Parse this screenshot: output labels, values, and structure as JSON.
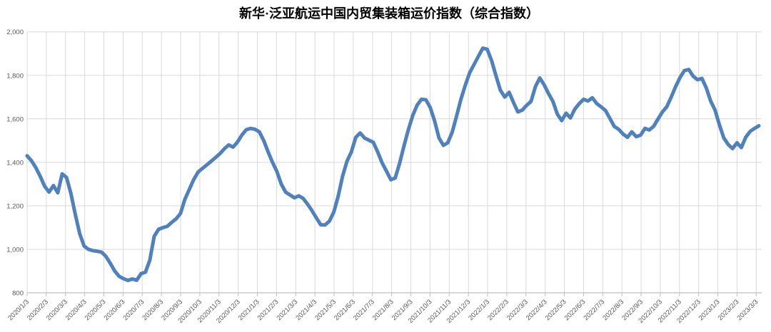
{
  "title": "新华·泛亚航运中国内贸集装箱运价指数（综合指数）",
  "colors": {
    "line": "#4F81BD",
    "gridline": "#D9D9D9",
    "axis_line": "#BFBFBF",
    "tick_label": "#595959",
    "title": "#000000",
    "background": "#FFFFFF"
  },
  "chart_data": {
    "type": "line",
    "title": "新华·泛亚航运中国内贸集装箱运价指数（综合指数）",
    "series_name": "综合指数",
    "legend": "none",
    "grid": true,
    "ylim": [
      800,
      2000
    ],
    "y_tick_step": 200,
    "y_tick_labels_top_to_bottom": [
      "2,000",
      "1,800",
      "1,600",
      "1,400",
      "1,200",
      "1,000",
      "800"
    ],
    "x_tick_labels": [
      "2020/1/3",
      "2020/2/3",
      "2020/3/3",
      "2020/4/3",
      "2020/5/3",
      "2020/6/3",
      "2020/7/3",
      "2020/8/3",
      "2020/9/3",
      "2020/10/3",
      "2020/11/3",
      "2020/12/3",
      "2021/1/3",
      "2021/2/3",
      "2021/3/3",
      "2021/4/3",
      "2021/5/3",
      "2021/6/3",
      "2021/7/3",
      "2021/8/3",
      "2021/9/3",
      "2021/10/3",
      "2021/11/3",
      "2021/12/3",
      "2022/1/3",
      "2022/2/3",
      "2022/3/3",
      "2022/4/3",
      "2022/5/3",
      "2022/6/3",
      "2022/7/3",
      "2022/8/3",
      "2022/9/3",
      "2022/10/3",
      "2022/11/3",
      "2022/12/3",
      "2023/1/3",
      "2023/2/3",
      "2023/3/3"
    ],
    "x_start": "2020/1/3",
    "x_end": "2023/3/12",
    "x_interval": "weekly",
    "values": [
      1430,
      1407,
      1375,
      1335,
      1290,
      1263,
      1293,
      1260,
      1347,
      1330,
      1256,
      1160,
      1072,
      1015,
      1000,
      994,
      991,
      987,
      967,
      935,
      900,
      876,
      865,
      857,
      864,
      858,
      888,
      895,
      950,
      1060,
      1092,
      1100,
      1106,
      1124,
      1140,
      1165,
      1230,
      1275,
      1320,
      1355,
      1372,
      1388,
      1405,
      1422,
      1440,
      1462,
      1480,
      1470,
      1493,
      1525,
      1550,
      1556,
      1552,
      1540,
      1500,
      1448,
      1400,
      1358,
      1300,
      1263,
      1250,
      1237,
      1246,
      1234,
      1208,
      1178,
      1145,
      1113,
      1112,
      1130,
      1172,
      1245,
      1337,
      1405,
      1448,
      1515,
      1535,
      1512,
      1502,
      1492,
      1448,
      1398,
      1360,
      1320,
      1328,
      1395,
      1475,
      1550,
      1615,
      1663,
      1690,
      1688,
      1652,
      1590,
      1512,
      1478,
      1490,
      1538,
      1612,
      1690,
      1755,
      1812,
      1850,
      1888,
      1925,
      1920,
      1868,
      1798,
      1732,
      1700,
      1722,
      1675,
      1632,
      1640,
      1662,
      1680,
      1748,
      1788,
      1756,
      1716,
      1680,
      1622,
      1592,
      1626,
      1604,
      1645,
      1670,
      1690,
      1682,
      1697,
      1670,
      1655,
      1638,
      1602,
      1565,
      1552,
      1530,
      1515,
      1540,
      1518,
      1525,
      1556,
      1549,
      1566,
      1600,
      1632,
      1656,
      1700,
      1748,
      1790,
      1822,
      1827,
      1796,
      1780,
      1786,
      1742,
      1682,
      1640,
      1572,
      1512,
      1482,
      1463,
      1490,
      1468,
      1515,
      1542,
      1556,
      1568
    ]
  }
}
